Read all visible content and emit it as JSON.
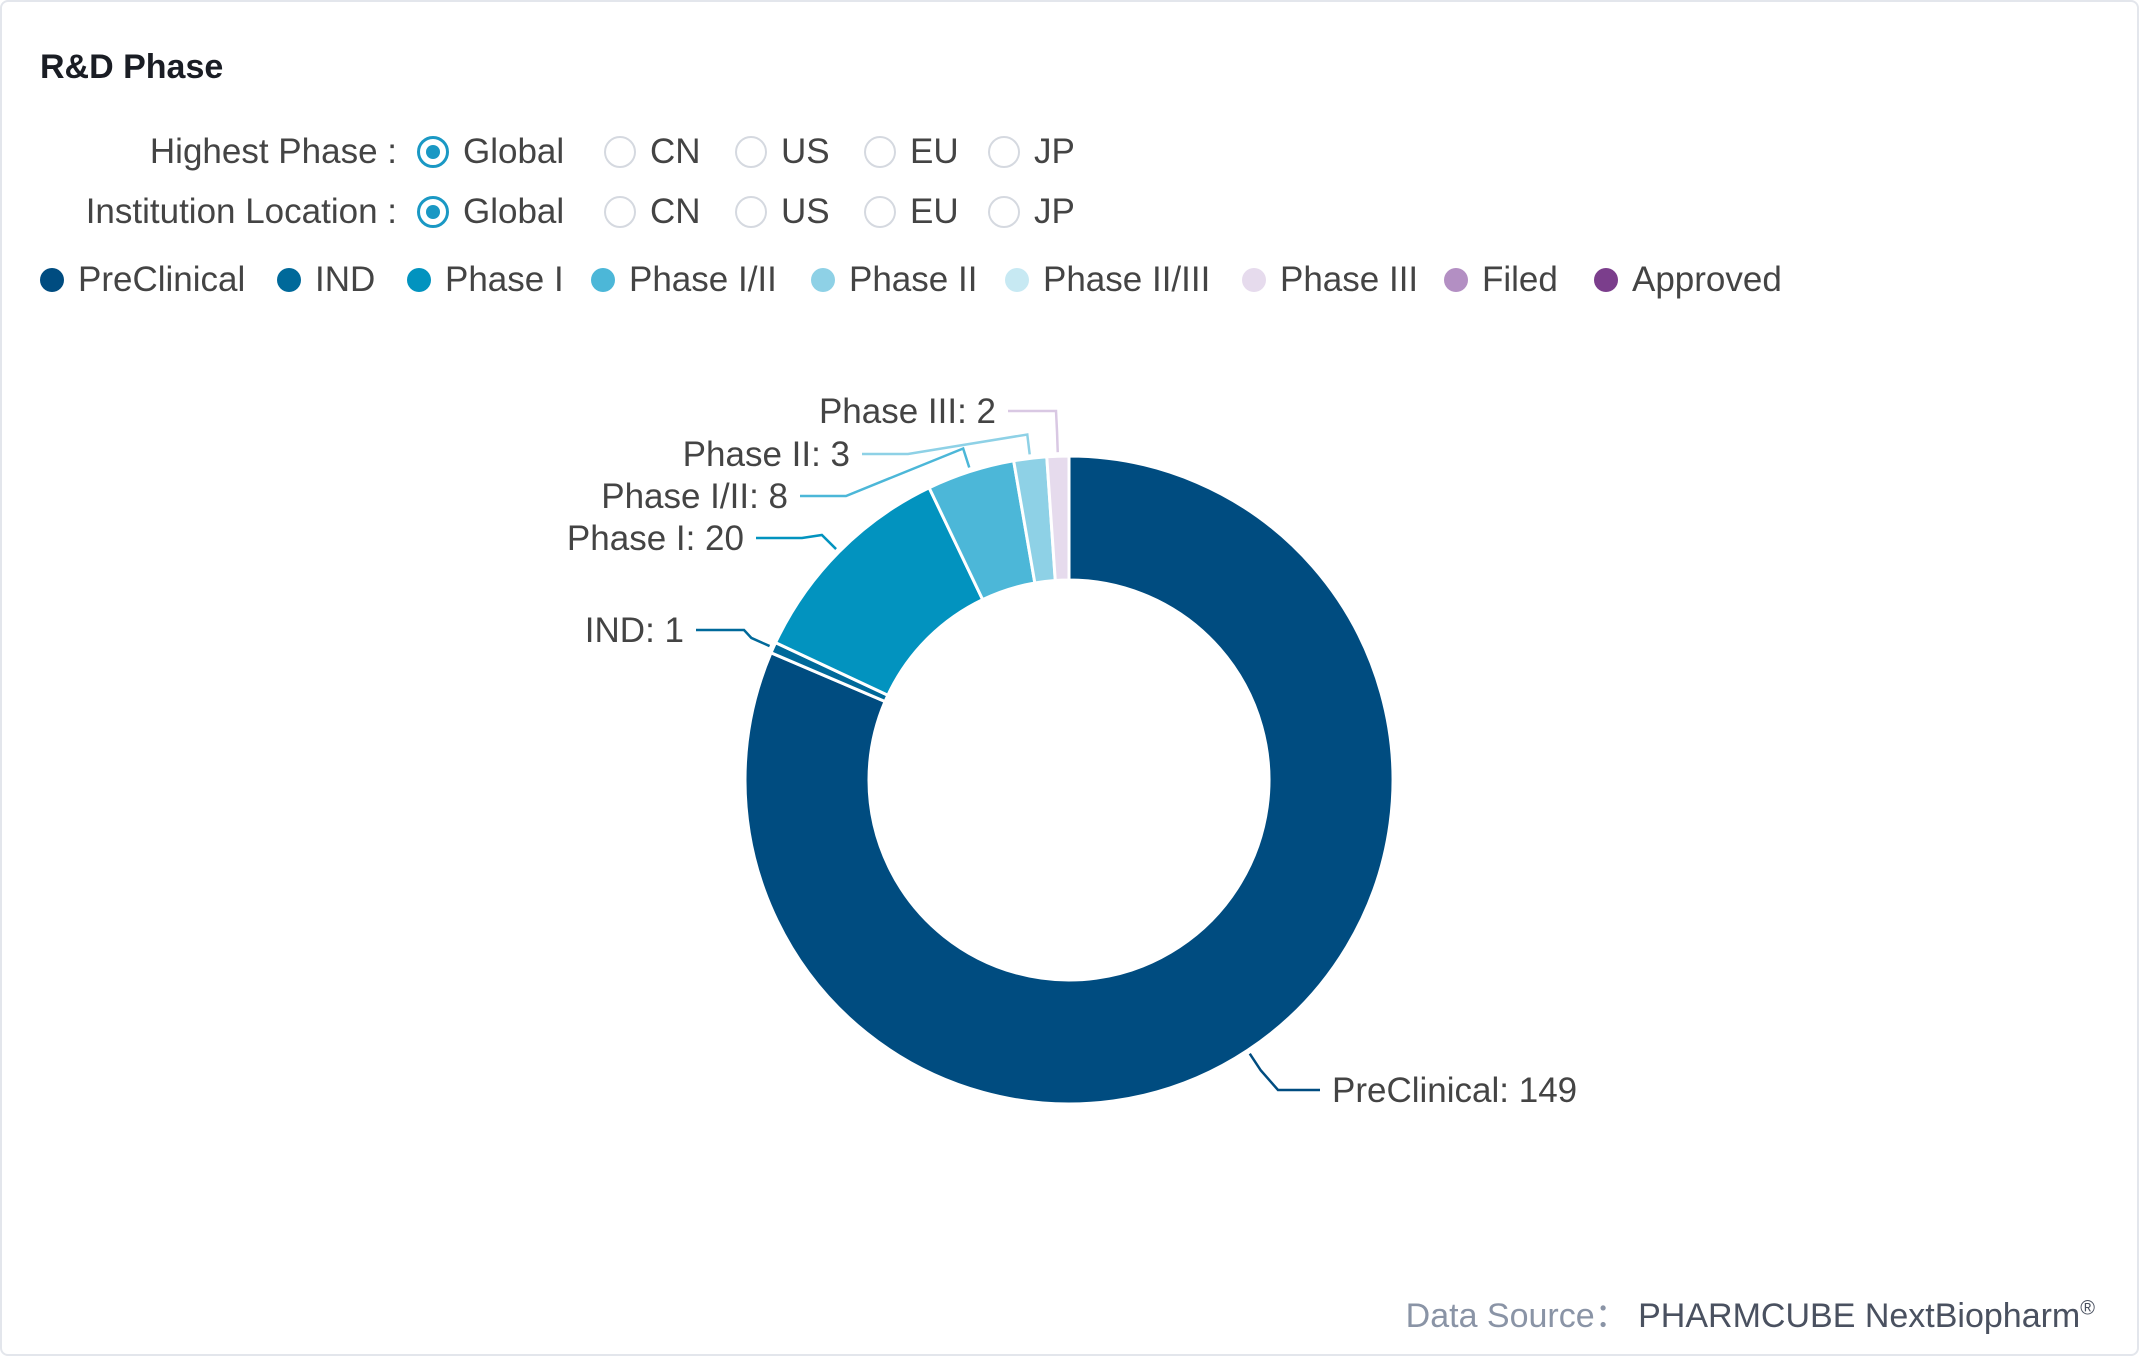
{
  "title": "R&D Phase",
  "filters": {
    "highest_phase": {
      "label": "Highest Phase :",
      "options": [
        "Global",
        "CN",
        "US",
        "EU",
        "JP"
      ],
      "selected": "Global"
    },
    "institution_location": {
      "label": "Institution Location :",
      "options": [
        "Global",
        "CN",
        "US",
        "EU",
        "JP"
      ],
      "selected": "Global"
    }
  },
  "chart_data": {
    "type": "pie",
    "donut": true,
    "categories": [
      "PreClinical",
      "IND",
      "Phase I",
      "Phase I/II",
      "Phase II",
      "Phase II/III",
      "Phase III",
      "Filed",
      "Approved"
    ],
    "values": [
      149,
      1,
      20,
      8,
      3,
      0,
      2,
      0,
      0
    ],
    "colors": [
      "#004c80",
      "#00699a",
      "#0293bf",
      "#4cb7d8",
      "#8ed1e6",
      "#c7e9f3",
      "#e6dbed",
      "#b38fc3",
      "#7b3e8c"
    ],
    "data_labels": [
      "PreClinical: 149",
      "IND: 1",
      "Phase I: 20",
      "Phase I/II: 8",
      "Phase II: 3",
      "",
      "Phase III: 2",
      "",
      ""
    ],
    "legend_placement": "top-left"
  },
  "footer": {
    "label": "Data Source：",
    "source": "PHARMCUBE NextBiopharm",
    "mark": "®"
  }
}
